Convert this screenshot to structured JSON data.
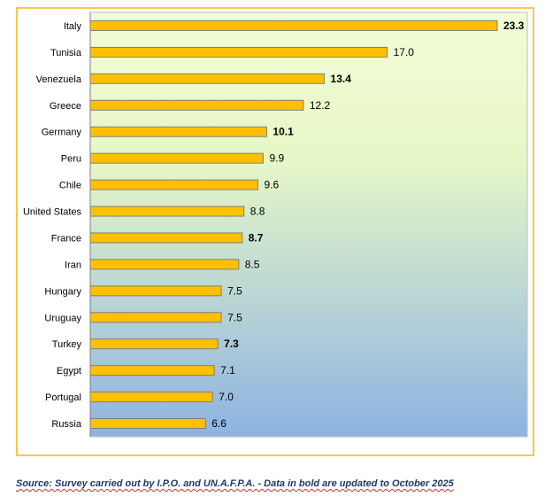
{
  "chart_data": {
    "type": "bar",
    "orientation": "horizontal",
    "categories": [
      "Italy",
      "Tunisia",
      "Venezuela",
      "Greece",
      "Germany",
      "Peru",
      "Chile",
      "United States",
      "France",
      "Iran",
      "Hungary",
      "Uruguay",
      "Turkey",
      "Egypt",
      "Portugal",
      "Russia"
    ],
    "values": [
      23.3,
      17.0,
      13.4,
      12.2,
      10.1,
      9.9,
      9.6,
      8.8,
      8.7,
      8.5,
      7.5,
      7.5,
      7.3,
      7.1,
      7.0,
      6.6
    ],
    "value_labels": [
      "23.3",
      "17.0",
      "13.4",
      "12.2",
      "10.1",
      "9.9",
      "9.6",
      "8.8",
      "8.7",
      "8.5",
      "7.5",
      "7.5",
      "7.3",
      "7.1",
      "7.0",
      "6.6"
    ],
    "bold_labels": [
      true,
      false,
      true,
      false,
      true,
      false,
      false,
      false,
      true,
      false,
      false,
      false,
      true,
      false,
      false,
      false
    ],
    "xlim": [
      0,
      25
    ],
    "grid": false,
    "title": "",
    "xlabel": "",
    "ylabel": "",
    "colors": {
      "bar_fill": "#ffc000",
      "bar_stroke": "#7f7f7f",
      "frame_border": "#f5c84c",
      "bg_top": "#f3fcd6",
      "bg_bottom": "#8db3e2",
      "text": "#000000"
    }
  },
  "footer": {
    "source_text": "Source: Survey carried out by I.P.O. and UN.A.F.P.A. - Data in bold are updated to October 2025"
  }
}
